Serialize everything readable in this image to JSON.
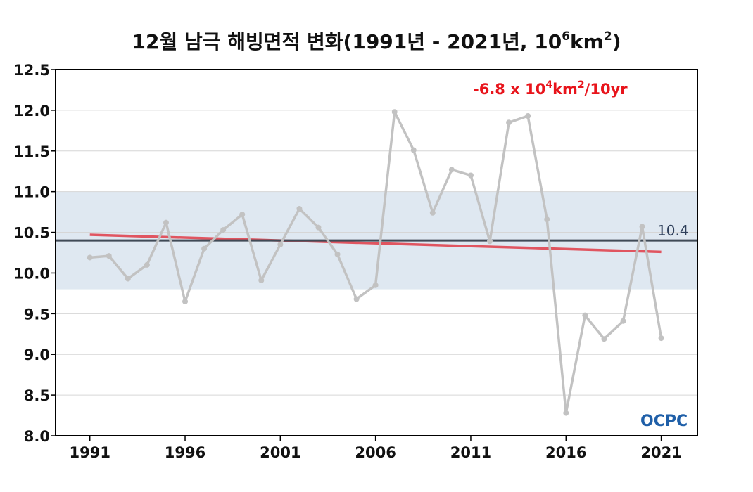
{
  "title": {
    "prefix": "12월 남극 해빙면적 변화(1991년 - 2021년, 10",
    "exp1": "6",
    "mid": "km",
    "exp2": "2",
    "suffix": ")"
  },
  "trend_label": {
    "prefix": "-6.8 x 10",
    "exp1": "4",
    "mid": "km",
    "exp2": "2",
    "suffix": "/10yr"
  },
  "logo": {
    "text": "OCPC"
  },
  "colors": {
    "series": "#c2c2c2",
    "mean": "#404a56",
    "trend": "#e05560",
    "band": "#dfe8f1",
    "grid": "#d6d6d6",
    "trend_text": "#e8141b",
    "logo": "#1f5fa8"
  },
  "chart_data": {
    "type": "line",
    "x": [
      1991,
      1992,
      1993,
      1994,
      1995,
      1996,
      1997,
      1998,
      1999,
      2000,
      2001,
      2002,
      2003,
      2004,
      2005,
      2006,
      2007,
      2008,
      2009,
      2010,
      2011,
      2012,
      2013,
      2014,
      2015,
      2016,
      2017,
      2018,
      2019,
      2020,
      2021
    ],
    "series": [
      {
        "values": [
          10.19,
          10.21,
          9.93,
          10.1,
          10.62,
          9.65,
          10.3,
          10.53,
          10.72,
          9.91,
          10.35,
          10.79,
          10.56,
          10.23,
          9.68,
          9.85,
          11.98,
          11.51,
          10.74,
          11.27,
          11.2,
          10.39,
          11.85,
          11.93,
          10.66,
          8.28,
          9.48,
          9.19,
          9.41,
          10.57,
          9.2
        ]
      }
    ],
    "mean": {
      "value": 10.4,
      "label": "10.4"
    },
    "trend": {
      "start": [
        1991,
        10.47
      ],
      "end": [
        2021,
        10.26
      ]
    },
    "band": [
      9.8,
      11.0
    ],
    "xticks": [
      1991,
      1996,
      2001,
      2006,
      2011,
      2016,
      2021
    ],
    "xtick_labels": [
      "1991",
      "1996",
      "2001",
      "2006",
      "2011",
      "2016",
      "2021"
    ],
    "yticks": [
      8.0,
      8.5,
      9.0,
      9.5,
      10.0,
      10.5,
      11.0,
      11.5,
      12.0,
      12.5
    ],
    "ytick_labels": [
      "8.0",
      "8.5",
      "9.0",
      "9.5",
      "10.0",
      "10.5",
      "11.0",
      "11.5",
      "12.0",
      "12.5"
    ],
    "ylim": [
      8.0,
      12.5
    ],
    "xlim": [
      1989.2,
      2022.9
    ],
    "grid": true
  }
}
